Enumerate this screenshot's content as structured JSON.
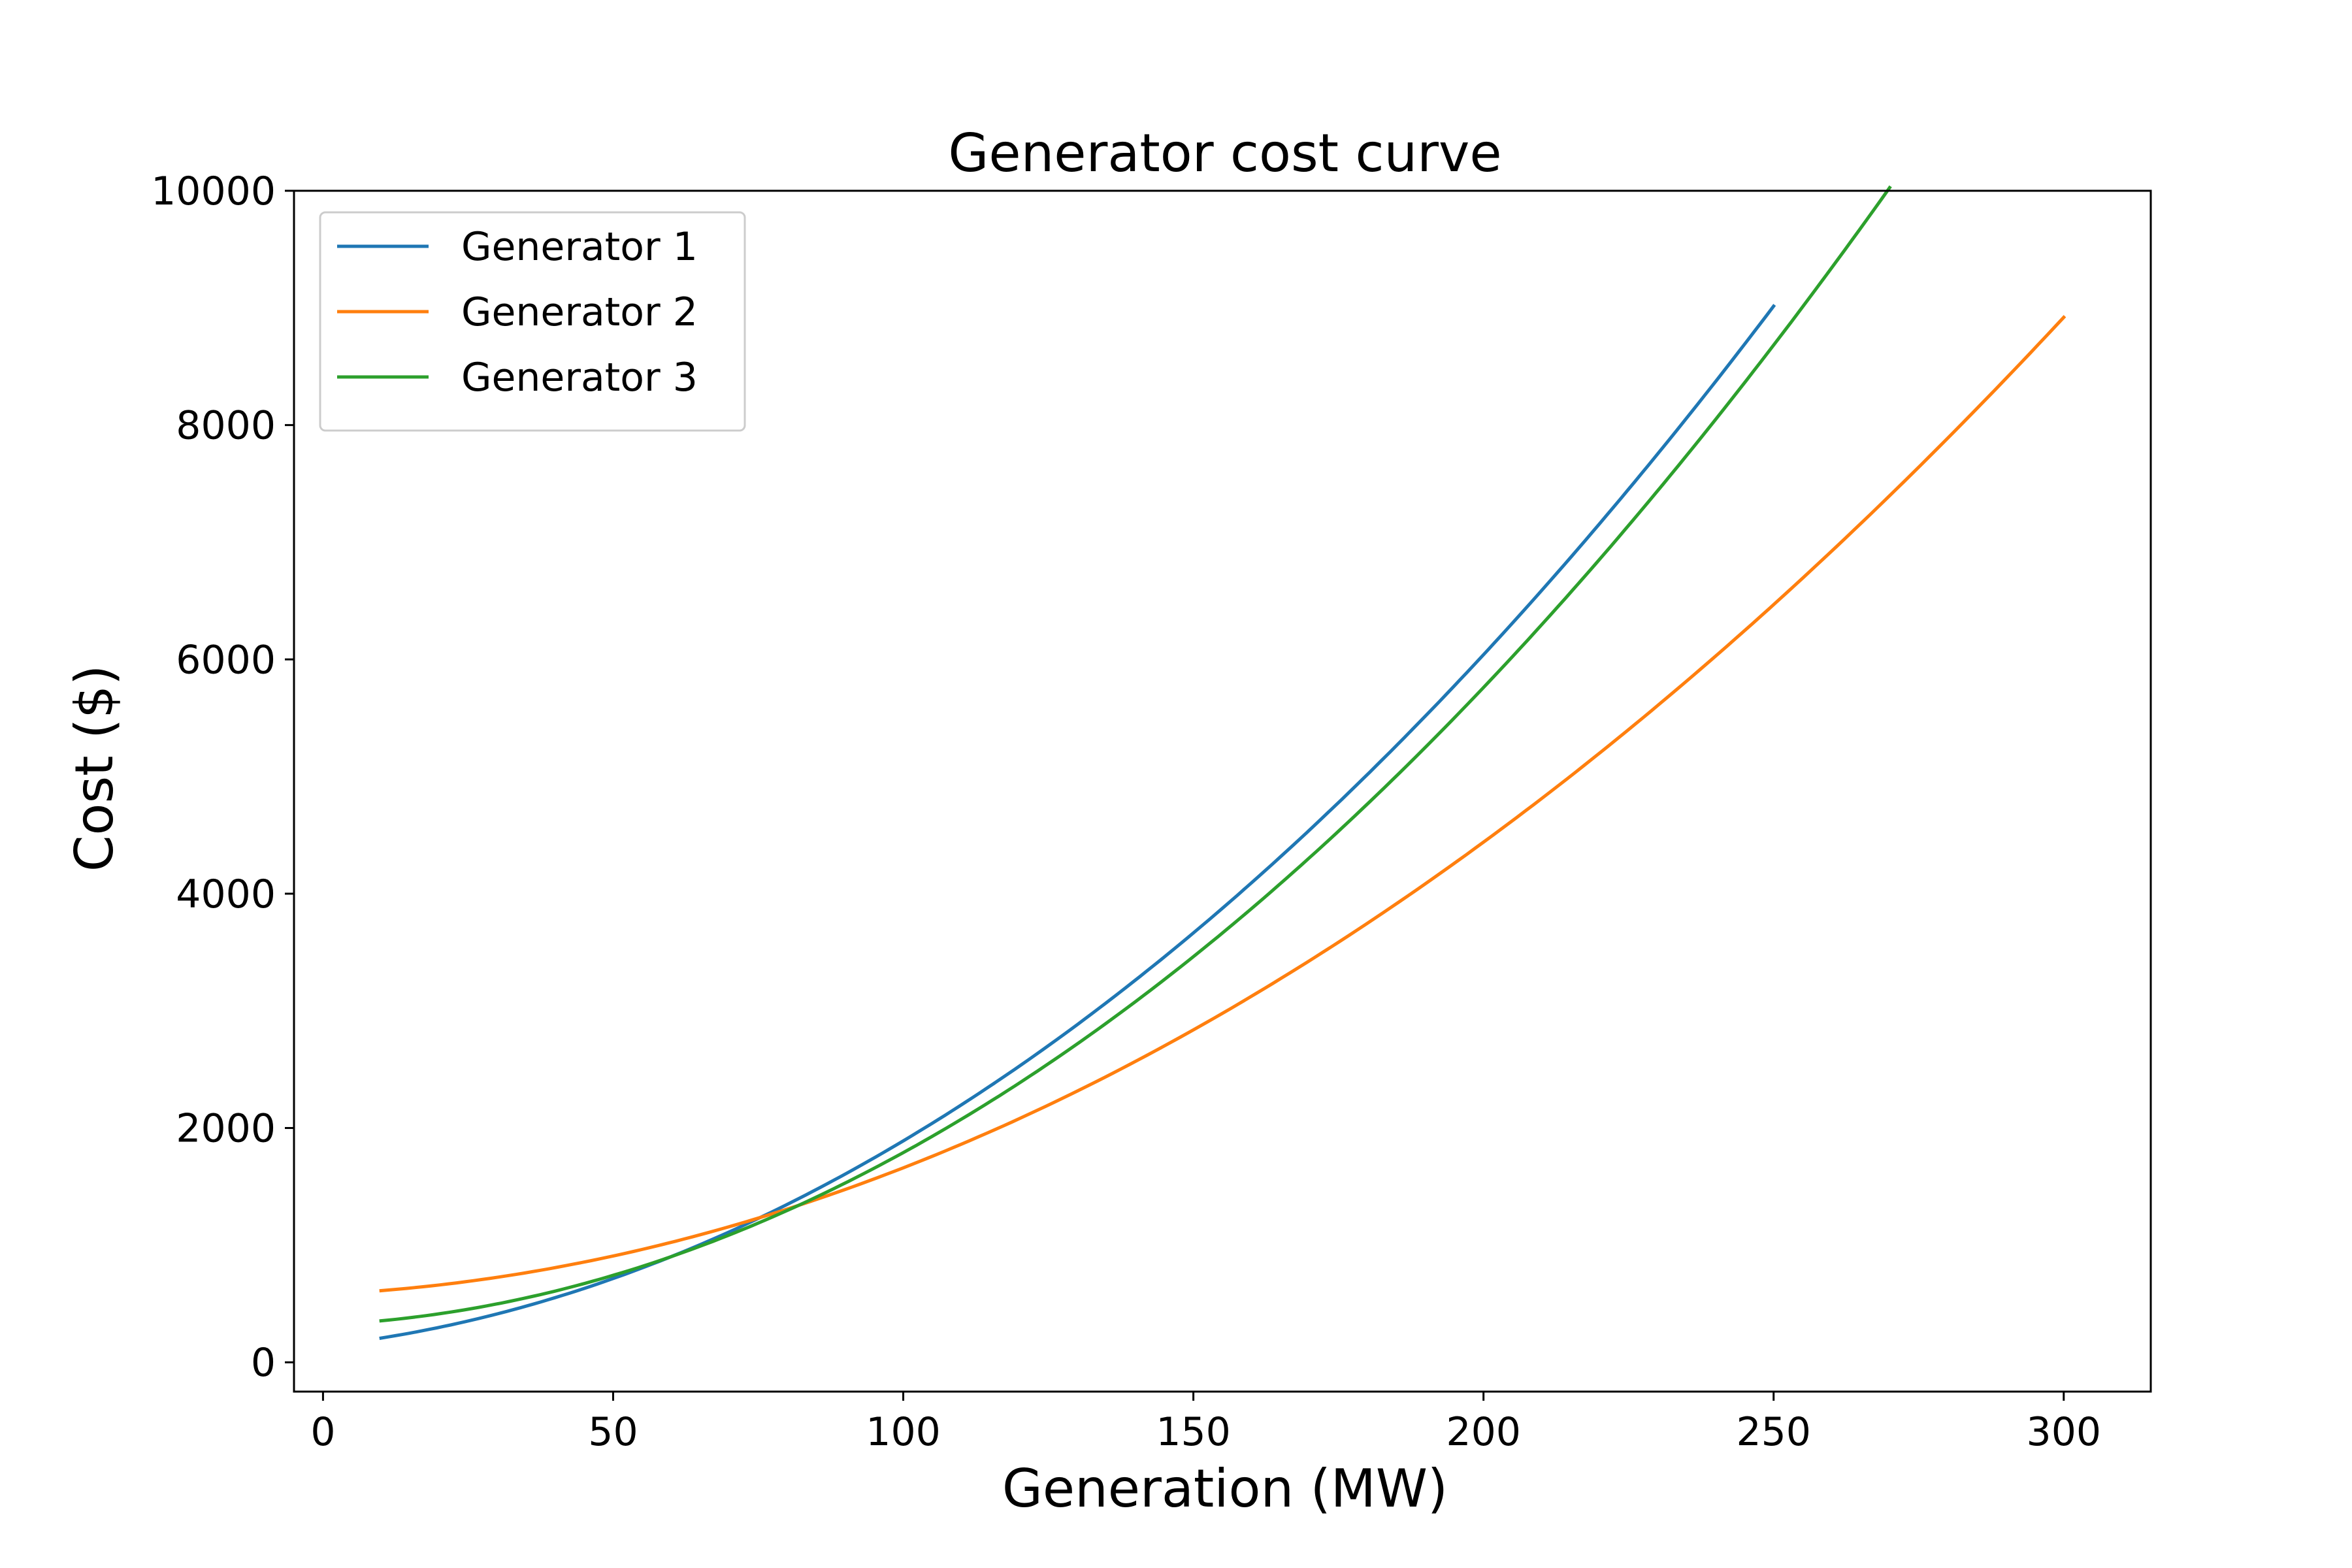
{
  "chart_data": {
    "type": "line",
    "title": "Generator cost curve",
    "xlabel": "Generation (MW)",
    "ylabel": "Cost ($)",
    "xlim": [
      -5,
      315
    ],
    "ylim": [
      -250,
      10000
    ],
    "xticks": [
      0,
      50,
      100,
      150,
      200,
      250,
      300
    ],
    "yticks": [
      0,
      2000,
      4000,
      6000,
      8000,
      10000
    ],
    "grid": false,
    "legend": "top-left",
    "series": [
      {
        "name": "Generator 1",
        "color": "#1f77b4",
        "x_range": [
          10,
          250
        ],
        "coefficients": {
          "a": 0.12,
          "b": 5.5,
          "c": 140
        }
      },
      {
        "name": "Generator 2",
        "color": "#ff7f0e",
        "x_range": [
          10,
          300
        ],
        "coefficients": {
          "a": 0.085,
          "b": 2.3,
          "c": 580
        }
      },
      {
        "name": "Generator 3",
        "color": "#2ca02c",
        "x_range": [
          10,
          270
        ],
        "coefficients": {
          "a": 0.125,
          "b": 2.2,
          "c": 320
        }
      }
    ]
  }
}
